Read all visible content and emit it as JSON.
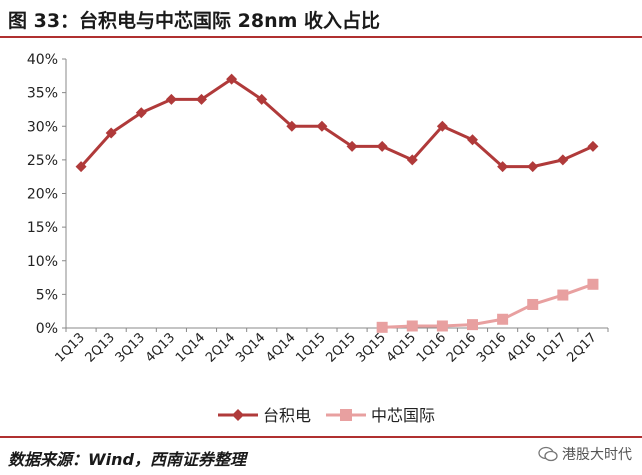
{
  "header": {
    "title": "图 33：台积电与中芯国际 28nm 收入占比"
  },
  "chart_data": {
    "type": "line",
    "title": "",
    "xlabel": "",
    "ylabel": "",
    "categories": [
      "1Q13",
      "2Q13",
      "3Q13",
      "4Q13",
      "1Q14",
      "2Q14",
      "3Q14",
      "4Q14",
      "1Q15",
      "2Q15",
      "3Q15",
      "4Q15",
      "1Q16",
      "2Q16",
      "3Q16",
      "4Q16",
      "1Q17",
      "2Q17"
    ],
    "y_ticks": [
      "0%",
      "5%",
      "10%",
      "15%",
      "20%",
      "25%",
      "30%",
      "35%",
      "40%"
    ],
    "ylim": [
      0,
      40
    ],
    "grid": false,
    "legend_position": "bottom",
    "series": [
      {
        "name": "台积电",
        "color": "#b03a3a",
        "marker": "diamond",
        "values": [
          24,
          29,
          32,
          34,
          34,
          37,
          34,
          30,
          30,
          27,
          27,
          25,
          30,
          28,
          24,
          24,
          25,
          27
        ]
      },
      {
        "name": "中芯国际",
        "color": "#e8a0a0",
        "marker": "square",
        "values": [
          null,
          null,
          null,
          null,
          null,
          null,
          null,
          null,
          null,
          null,
          0.1,
          0.3,
          0.3,
          0.5,
          1.3,
          3.5,
          4.9,
          6.5
        ]
      }
    ]
  },
  "footer": {
    "source": "数据来源：Wind，西南证券整理",
    "watermark": "港股大时代",
    "watermark_icon": "wechat-icon"
  }
}
